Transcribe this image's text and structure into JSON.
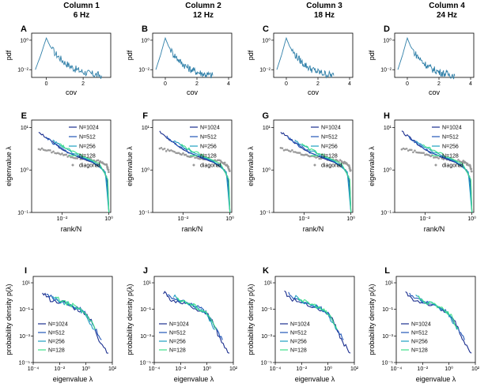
{
  "columns": [
    {
      "title": "Column 1",
      "subtitle": "6 Hz"
    },
    {
      "title": "Column 2",
      "subtitle": "12 Hz"
    },
    {
      "title": "Column 3",
      "subtitle": "18 Hz"
    },
    {
      "title": "Column 4",
      "subtitle": "24 Hz"
    }
  ],
  "rows": {
    "pdf": {
      "letters": [
        "A",
        "B",
        "C",
        "D"
      ],
      "xlabel": "cov",
      "ylabel": "pdf",
      "yticks": [
        "10⁻²",
        "10⁰"
      ],
      "xticks": [
        [
          "0",
          "2"
        ],
        [
          "0",
          "2",
          "4"
        ],
        [
          "0",
          "2",
          "4"
        ],
        [
          "0",
          "2",
          "4"
        ]
      ]
    },
    "eig": {
      "letters": [
        "E",
        "F",
        "G",
        "H"
      ],
      "xlabel": "rank/N",
      "ylabel": "eigenvalue λ",
      "yticks": [
        "10⁻¹",
        "10⁰",
        "10¹"
      ],
      "xticks": [
        "10⁻²",
        "10⁰"
      ],
      "legend": [
        "N=1024",
        "N=512",
        "N=256",
        "N=128",
        "diagonal"
      ]
    },
    "dens": {
      "letters": [
        "I",
        "J",
        "K",
        "L"
      ],
      "xlabel": "eigenvalue λ",
      "ylabel": "probability density p(λ)",
      "yticks": [
        "10⁻⁵",
        "10⁻³",
        "10⁻¹",
        "10¹"
      ],
      "xticks": [
        "10⁻⁴",
        "10⁻²",
        "10⁰",
        "10²"
      ],
      "legend": [
        "N=1024",
        "N=512",
        "N=256",
        "N=128"
      ]
    }
  },
  "colors": {
    "pdf_line": "#2f7fa8",
    "N1024": "#1c2f8f",
    "N512": "#2257b8",
    "N256": "#1f9fc0",
    "N128": "#3fe08a",
    "diagonal": "#9a9a9a"
  },
  "chart_data": [
    {
      "type": "line",
      "panel": "A",
      "xlabel": "cov",
      "ylabel": "pdf",
      "yscale": "log",
      "xlim": [
        -0.8,
        3.5
      ],
      "ylim": [
        0.003,
        3
      ],
      "series": [
        {
          "x": [
            -0.6,
            -0.3,
            -0.1,
            0.0,
            0.2,
            0.5,
            1.0,
            1.5,
            2.0,
            2.5,
            3.0
          ],
          "values": [
            0.01,
            0.1,
            0.6,
            1.4,
            0.4,
            0.12,
            0.03,
            0.012,
            0.007,
            0.005,
            0.004
          ]
        }
      ]
    },
    {
      "type": "line",
      "panel": "B",
      "xlabel": "cov",
      "ylabel": "pdf",
      "yscale": "log",
      "xlim": [
        -0.8,
        4.2
      ],
      "ylim": [
        0.003,
        3
      ],
      "series": [
        {
          "x": [
            -0.6,
            -0.3,
            -0.1,
            0.0,
            0.2,
            0.5,
            1.0,
            1.5,
            2.0,
            2.5,
            3.0
          ],
          "values": [
            0.01,
            0.1,
            0.6,
            1.4,
            0.4,
            0.12,
            0.03,
            0.012,
            0.007,
            0.005,
            0.004
          ]
        }
      ]
    },
    {
      "type": "line",
      "panel": "C",
      "xlabel": "cov",
      "ylabel": "pdf",
      "yscale": "log",
      "xlim": [
        -0.8,
        4.2
      ],
      "ylim": [
        0.003,
        3
      ],
      "series": [
        {
          "x": [
            -0.6,
            -0.3,
            -0.1,
            0.0,
            0.2,
            0.5,
            1.0,
            1.5,
            2.0,
            2.5,
            3.0
          ],
          "values": [
            0.01,
            0.1,
            0.6,
            1.4,
            0.4,
            0.12,
            0.03,
            0.012,
            0.007,
            0.005,
            0.004
          ]
        }
      ]
    },
    {
      "type": "line",
      "panel": "D",
      "xlabel": "cov",
      "ylabel": "pdf",
      "yscale": "log",
      "xlim": [
        -0.8,
        4.2
      ],
      "ylim": [
        0.003,
        3
      ],
      "series": [
        {
          "x": [
            -0.6,
            -0.3,
            -0.1,
            0.0,
            0.2,
            0.5,
            1.0,
            1.5,
            2.0,
            2.5,
            3.0
          ],
          "values": [
            0.01,
            0.1,
            0.6,
            1.4,
            0.4,
            0.12,
            0.03,
            0.012,
            0.007,
            0.005,
            0.004
          ]
        }
      ]
    },
    {
      "type": "line",
      "panel": "E-H",
      "xlabel": "rank/N",
      "ylabel": "eigenvalue λ",
      "xscale": "log",
      "yscale": "log",
      "xlim": [
        0.0005,
        1.2
      ],
      "ylim": [
        0.1,
        15
      ],
      "series": [
        {
          "name": "N=1024",
          "x": [
            0.001,
            0.003,
            0.01,
            0.05,
            0.2,
            0.6,
            0.9,
            1.0
          ],
          "values": [
            8,
            5,
            3,
            2,
            1.5,
            1.0,
            0.5,
            0.1
          ]
        },
        {
          "name": "N=512",
          "x": [
            0.002,
            0.005,
            0.02,
            0.1,
            0.4,
            0.8,
            1.0
          ],
          "values": [
            6,
            4,
            2.5,
            1.8,
            1.3,
            0.7,
            0.1
          ]
        },
        {
          "name": "N=256",
          "x": [
            0.004,
            0.01,
            0.05,
            0.2,
            0.7,
            1.0
          ],
          "values": [
            5,
            3.5,
            2.2,
            1.6,
            0.9,
            0.1
          ]
        },
        {
          "name": "N=128",
          "x": [
            0.008,
            0.02,
            0.1,
            0.4,
            0.9,
            1.0
          ],
          "values": [
            4,
            3,
            2,
            1.4,
            0.6,
            0.1
          ]
        },
        {
          "name": "diagonal",
          "x": [
            0.001,
            0.005,
            0.02,
            0.1,
            0.4,
            0.8,
            1.0
          ],
          "values": [
            3.2,
            2.6,
            2.1,
            1.8,
            1.6,
            1.3,
            0.9
          ]
        }
      ]
    },
    {
      "type": "line",
      "panel": "I-L",
      "xlabel": "eigenvalue λ",
      "ylabel": "probability density p(λ)",
      "xscale": "log",
      "yscale": "log",
      "xlim": [
        0.0001,
        100
      ],
      "ylim": [
        1e-05,
        30
      ],
      "series": [
        {
          "name": "N=1024",
          "x": [
            0.0005,
            0.002,
            0.02,
            0.2,
            1,
            3,
            10,
            50
          ],
          "values": [
            2,
            0.5,
            0.3,
            0.1,
            0.05,
            0.01,
            0.0005,
            5e-05
          ]
        },
        {
          "name": "N=512",
          "x": [
            0.001,
            0.005,
            0.03,
            0.3,
            1,
            4,
            15
          ],
          "values": [
            1.5,
            0.5,
            0.3,
            0.12,
            0.05,
            0.005,
            0.0005
          ]
        },
        {
          "name": "N=256",
          "x": [
            0.003,
            0.01,
            0.05,
            0.3,
            1,
            4
          ],
          "values": [
            1,
            0.4,
            0.25,
            0.1,
            0.04,
            0.003
          ]
        },
        {
          "name": "N=128",
          "x": [
            0.005,
            0.02,
            0.1,
            0.5,
            1.5,
            5
          ],
          "values": [
            0.8,
            0.35,
            0.2,
            0.08,
            0.03,
            0.003
          ]
        }
      ]
    }
  ]
}
